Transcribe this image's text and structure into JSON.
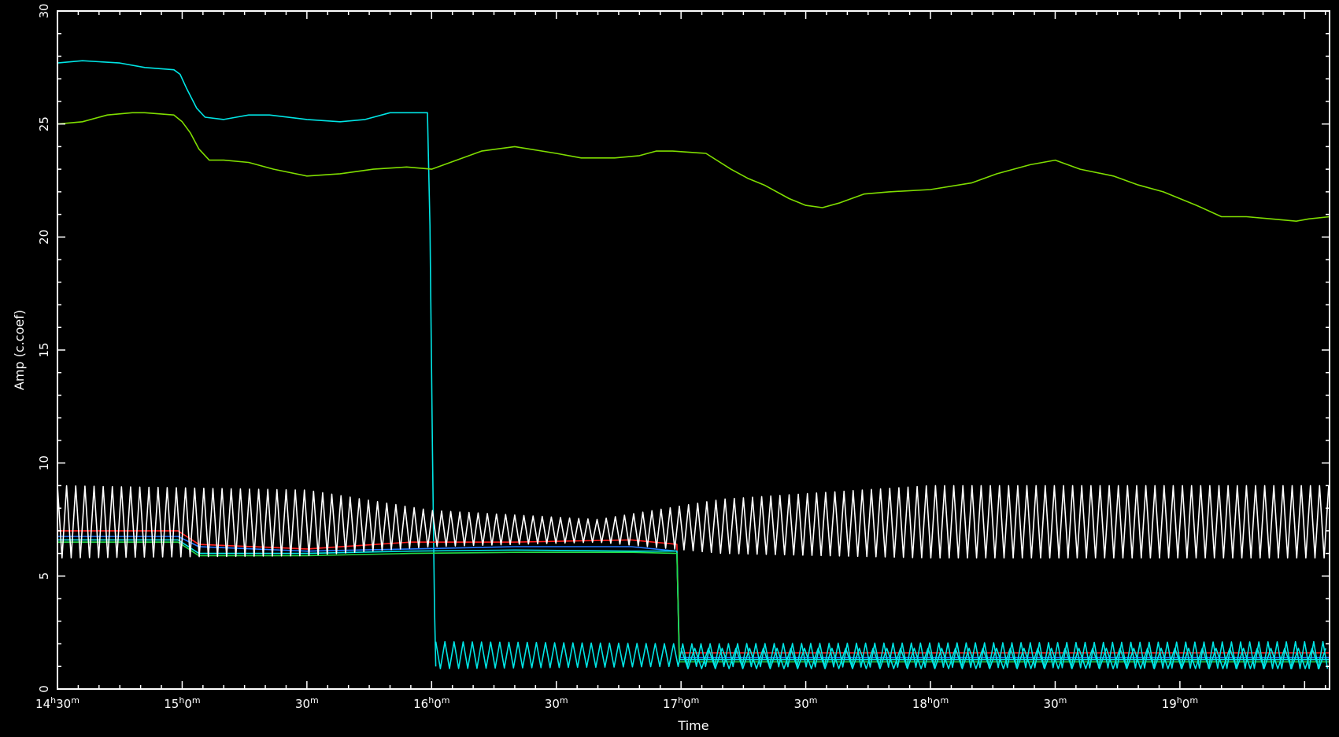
{
  "chart_data": {
    "type": "line",
    "xlabel": "Time",
    "ylabel": "Amp (c.coef)",
    "xlim": [
      870,
      1176
    ],
    "ylim": [
      0,
      30
    ],
    "x_unit": "minutes since 0h",
    "x_ticks": [
      {
        "value": 870,
        "h": "14",
        "m": "30"
      },
      {
        "value": 900,
        "h": "15",
        "m": "0"
      },
      {
        "value": 930,
        "h": "",
        "m": "30"
      },
      {
        "value": 960,
        "h": "16",
        "m": "0"
      },
      {
        "value": 990,
        "h": "",
        "m": "30"
      },
      {
        "value": 1020,
        "h": "17",
        "m": "0"
      },
      {
        "value": 1050,
        "h": "",
        "m": "30"
      },
      {
        "value": 1080,
        "h": "18",
        "m": "0"
      },
      {
        "value": 1110,
        "h": "",
        "m": "30"
      },
      {
        "value": 1140,
        "h": "19",
        "m": "0"
      }
    ],
    "y_ticks": [
      "0",
      "5",
      "10",
      "15",
      "20",
      "25",
      "30"
    ],
    "grid": false,
    "background": "#000000",
    "series": [
      {
        "color": "#00e5e5",
        "x": [
          870,
          876,
          885,
          891,
          898,
          899.5,
          901,
          903.5,
          905.5,
          910,
          913,
          916,
          921,
          930,
          938,
          944,
          950,
          958,
          959,
          959.6,
          960.2,
          960.7,
          961
        ],
        "values": [
          27.7,
          27.8,
          27.7,
          27.5,
          27.4,
          27.2,
          26.6,
          25.7,
          25.3,
          25.2,
          25.3,
          25.4,
          25.4,
          25.2,
          25.1,
          25.2,
          25.5,
          25.5,
          25.5,
          20.5,
          10.5,
          3.5,
          1.0
        ]
      },
      {
        "color": "#7fdd00",
        "x": [
          870,
          876,
          882,
          888,
          891,
          898,
          900,
          902,
          904,
          906.5,
          910,
          916,
          922,
          930,
          938,
          946,
          954,
          960,
          966,
          972,
          980,
          990,
          996,
          1004,
          1010,
          1014,
          1018,
          1026,
          1032,
          1036,
          1040,
          1046,
          1050,
          1054,
          1058,
          1064,
          1070,
          1080,
          1090,
          1096,
          1104,
          1110,
          1116,
          1124,
          1130,
          1136,
          1144,
          1150,
          1156,
          1162,
          1168,
          1171,
          1176
        ],
        "values": [
          25.0,
          25.1,
          25.4,
          25.5,
          25.5,
          25.4,
          25.1,
          24.6,
          23.9,
          23.4,
          23.4,
          23.3,
          23.0,
          22.7,
          22.8,
          23.0,
          23.1,
          23.0,
          23.4,
          23.8,
          24.0,
          23.7,
          23.5,
          23.5,
          23.6,
          23.8,
          23.8,
          23.7,
          23.0,
          22.6,
          22.3,
          21.7,
          21.4,
          21.3,
          21.5,
          21.9,
          22.0,
          22.1,
          22.4,
          22.8,
          23.2,
          23.4,
          23.0,
          22.7,
          22.3,
          22.0,
          21.4,
          20.9,
          20.9,
          20.8,
          20.7,
          20.8,
          20.9
        ]
      },
      {
        "color": "#ff2020",
        "x": [
          870,
          899,
          904,
          930,
          955,
          980,
          1008,
          1019,
          1019.6,
          1176
        ],
        "values": [
          7.0,
          7.0,
          6.4,
          6.2,
          6.5,
          6.5,
          6.6,
          6.4,
          1.6,
          1.6
        ]
      },
      {
        "color": "#2277ff",
        "x": [
          870,
          899,
          904,
          930,
          955,
          980,
          1008,
          1019,
          1019.6,
          1176
        ],
        "values": [
          6.75,
          6.75,
          6.3,
          6.1,
          6.2,
          6.3,
          6.3,
          6.1,
          1.4,
          1.4
        ]
      },
      {
        "color": "#00e5e5",
        "x": [
          870,
          899,
          904,
          930,
          955,
          980,
          1008,
          1019,
          1019.6,
          1176
        ],
        "values": [
          6.6,
          6.6,
          6.0,
          6.0,
          6.1,
          6.15,
          6.1,
          6.1,
          1.3,
          1.3
        ]
      },
      {
        "color": "#22dd44",
        "x": [
          870,
          899,
          904,
          930,
          955,
          980,
          1008,
          1019,
          1019.6,
          1176
        ],
        "values": [
          6.5,
          6.5,
          5.9,
          5.9,
          6.0,
          6.05,
          6.05,
          6.0,
          1.2,
          1.2
        ]
      },
      {
        "color": "#ffffff",
        "oscillating": true,
        "x_range": [
          870,
          1176
        ],
        "period_min": 2.2,
        "envelope": [
          {
            "x": 870,
            "low": 5.8,
            "high": 9.0
          },
          {
            "x": 930,
            "low": 5.9,
            "high": 8.8
          },
          {
            "x": 960,
            "low": 6.3,
            "high": 7.9
          },
          {
            "x": 1000,
            "low": 6.5,
            "high": 7.5
          },
          {
            "x": 1030,
            "low": 6.0,
            "high": 8.4
          },
          {
            "x": 1080,
            "low": 5.8,
            "high": 9.0
          },
          {
            "x": 1176,
            "low": 5.8,
            "high": 9.0
          }
        ]
      },
      {
        "color": "#00e5e5",
        "oscillating": true,
        "x_range": [
          961,
          1176
        ],
        "period_min": 2.2,
        "envelope": [
          {
            "x": 961,
            "low": 0.9,
            "high": 2.1
          },
          {
            "x": 1020,
            "low": 1.0,
            "high": 2.0
          },
          {
            "x": 1176,
            "low": 0.9,
            "high": 2.1
          }
        ]
      },
      {
        "color": "#00e5e5",
        "oscillating": true,
        "x_range": [
          1020,
          1176
        ],
        "period_min": 3.3,
        "envelope": [
          {
            "x": 1020,
            "low": 0.9,
            "high": 1.8
          },
          {
            "x": 1176,
            "low": 0.9,
            "high": 1.8
          }
        ]
      }
    ]
  }
}
